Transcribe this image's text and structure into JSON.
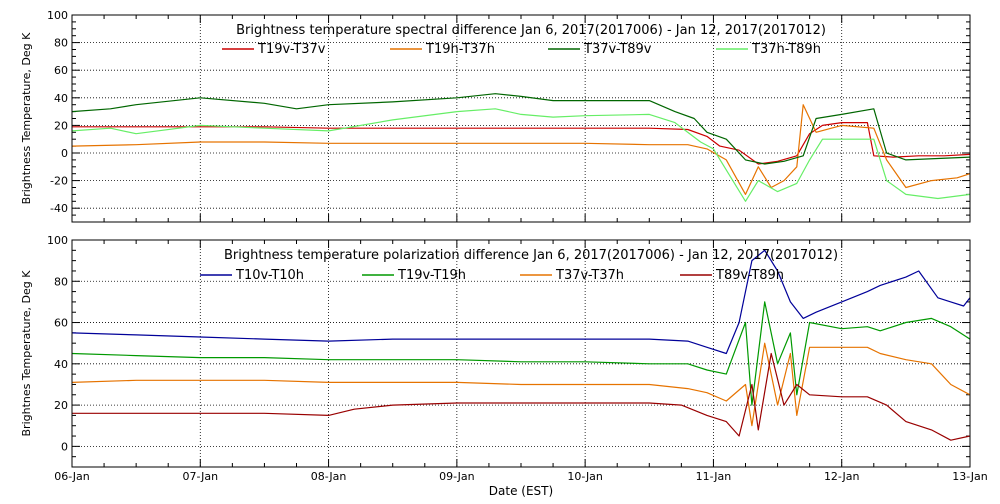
{
  "chart_data": [
    {
      "type": "line",
      "title": "Brightness temperature spectral difference    Jan  6, 2017(2017006) - Jan 12, 2017(2017012)",
      "ylabel": "Brightness Temperature, Deg K",
      "xlabel": "",
      "x_days": [
        0,
        7
      ],
      "ylim": [
        -50,
        100
      ],
      "yticks": [
        -40,
        -20,
        0,
        20,
        40,
        60,
        80,
        100
      ],
      "xticks": [
        0,
        1,
        2,
        3,
        4,
        5,
        6,
        7
      ],
      "xtick_labels": [
        "",
        "",
        "",
        "",
        "",
        "",
        "",
        ""
      ],
      "grid": true,
      "legend": "top-center",
      "series": [
        {
          "name": "T19v-T37v",
          "color": "#cc0000",
          "points": [
            [
              0,
              19
            ],
            [
              0.5,
              19
            ],
            [
              1,
              19
            ],
            [
              1.5,
              19
            ],
            [
              2,
              18
            ],
            [
              2.5,
              18
            ],
            [
              3,
              18
            ],
            [
              3.5,
              18
            ],
            [
              4,
              18
            ],
            [
              4.5,
              18
            ],
            [
              4.8,
              17
            ],
            [
              4.95,
              12
            ],
            [
              5.05,
              5
            ],
            [
              5.2,
              2
            ],
            [
              5.35,
              -8
            ],
            [
              5.5,
              -6
            ],
            [
              5.65,
              -2
            ],
            [
              5.75,
              14
            ],
            [
              5.85,
              20
            ],
            [
              6,
              22
            ],
            [
              6.2,
              22
            ],
            [
              6.25,
              -2
            ],
            [
              6.4,
              -3
            ],
            [
              6.6,
              -2
            ],
            [
              6.8,
              -2
            ],
            [
              7,
              -1
            ]
          ]
        },
        {
          "name": "T19h-T37h",
          "color": "#e67300",
          "points": [
            [
              0,
              5
            ],
            [
              0.5,
              6
            ],
            [
              1,
              8
            ],
            [
              1.5,
              8
            ],
            [
              2,
              7
            ],
            [
              2.5,
              7
            ],
            [
              3,
              7
            ],
            [
              3.5,
              7
            ],
            [
              4,
              7
            ],
            [
              4.5,
              6
            ],
            [
              4.8,
              6
            ],
            [
              4.95,
              3
            ],
            [
              5.1,
              -5
            ],
            [
              5.25,
              -30
            ],
            [
              5.35,
              -10
            ],
            [
              5.45,
              -25
            ],
            [
              5.55,
              -20
            ],
            [
              5.65,
              -10
            ],
            [
              5.7,
              35
            ],
            [
              5.8,
              15
            ],
            [
              6,
              20
            ],
            [
              6.25,
              18
            ],
            [
              6.35,
              -5
            ],
            [
              6.5,
              -25
            ],
            [
              6.7,
              -20
            ],
            [
              6.9,
              -18
            ],
            [
              7,
              -15
            ]
          ]
        },
        {
          "name": "T37v-T89v",
          "color": "#006600",
          "points": [
            [
              0,
              30
            ],
            [
              0.3,
              32
            ],
            [
              0.5,
              35
            ],
            [
              1,
              40
            ],
            [
              1.5,
              36
            ],
            [
              1.75,
              32
            ],
            [
              2,
              35
            ],
            [
              2.5,
              37
            ],
            [
              3,
              40
            ],
            [
              3.3,
              43
            ],
            [
              3.5,
              41
            ],
            [
              3.75,
              38
            ],
            [
              4,
              38
            ],
            [
              4.5,
              38
            ],
            [
              4.7,
              30
            ],
            [
              4.85,
              25
            ],
            [
              4.95,
              15
            ],
            [
              5.1,
              10
            ],
            [
              5.25,
              -5
            ],
            [
              5.4,
              -8
            ],
            [
              5.55,
              -6
            ],
            [
              5.7,
              -2
            ],
            [
              5.8,
              25
            ],
            [
              6,
              28
            ],
            [
              6.25,
              32
            ],
            [
              6.35,
              0
            ],
            [
              6.5,
              -5
            ],
            [
              6.75,
              -4
            ],
            [
              7,
              -3
            ]
          ]
        },
        {
          "name": "T37h-T89h",
          "color": "#66ee66",
          "points": [
            [
              0,
              16
            ],
            [
              0.3,
              18
            ],
            [
              0.5,
              14
            ],
            [
              1,
              20
            ],
            [
              1.5,
              18
            ],
            [
              2,
              16
            ],
            [
              2.5,
              24
            ],
            [
              3,
              30
            ],
            [
              3.3,
              32
            ],
            [
              3.5,
              28
            ],
            [
              3.75,
              26
            ],
            [
              4,
              27
            ],
            [
              4.5,
              28
            ],
            [
              4.7,
              22
            ],
            [
              4.9,
              8
            ],
            [
              5,
              3
            ],
            [
              5.25,
              -35
            ],
            [
              5.35,
              -20
            ],
            [
              5.5,
              -28
            ],
            [
              5.65,
              -22
            ],
            [
              5.75,
              -5
            ],
            [
              5.85,
              10
            ],
            [
              6,
              10
            ],
            [
              6.25,
              10
            ],
            [
              6.35,
              -20
            ],
            [
              6.5,
              -30
            ],
            [
              6.75,
              -33
            ],
            [
              7,
              -30
            ]
          ]
        }
      ]
    },
    {
      "type": "line",
      "title": "Brightness temperature polarization difference    Jan  6, 2017(2017006) - Jan 12, 2017(2017012)",
      "ylabel": "Brightnes Temperature, Deg K",
      "xlabel": "Date (EST)",
      "x_days": [
        0,
        7
      ],
      "ylim": [
        -10,
        100
      ],
      "yticks": [
        0,
        20,
        40,
        60,
        80,
        100
      ],
      "xticks": [
        0,
        1,
        2,
        3,
        4,
        5,
        6,
        7
      ],
      "xtick_labels": [
        "06-Jan",
        "07-Jan",
        "08-Jan",
        "09-Jan",
        "10-Jan",
        "11-Jan",
        "12-Jan",
        "13-Jan"
      ],
      "grid": true,
      "legend": "top-center",
      "series": [
        {
          "name": "T10v-T10h",
          "color": "#000099",
          "points": [
            [
              0,
              55
            ],
            [
              0.5,
              54
            ],
            [
              1,
              53
            ],
            [
              1.5,
              52
            ],
            [
              2,
              51
            ],
            [
              2.5,
              52
            ],
            [
              3,
              52
            ],
            [
              3.5,
              52
            ],
            [
              4,
              52
            ],
            [
              4.5,
              52
            ],
            [
              4.8,
              51
            ],
            [
              4.95,
              48
            ],
            [
              5.1,
              45
            ],
            [
              5.2,
              60
            ],
            [
              5.3,
              90
            ],
            [
              5.4,
              95
            ],
            [
              5.5,
              85
            ],
            [
              5.6,
              70
            ],
            [
              5.7,
              62
            ],
            [
              5.8,
              65
            ],
            [
              6,
              70
            ],
            [
              6.2,
              75
            ],
            [
              6.3,
              78
            ],
            [
              6.5,
              82
            ],
            [
              6.6,
              85
            ],
            [
              6.75,
              72
            ],
            [
              6.85,
              70
            ],
            [
              6.95,
              68
            ],
            [
              7,
              72
            ]
          ]
        },
        {
          "name": "T19v-T19h",
          "color": "#009900",
          "points": [
            [
              0,
              45
            ],
            [
              0.5,
              44
            ],
            [
              1,
              43
            ],
            [
              1.5,
              43
            ],
            [
              2,
              42
            ],
            [
              2.5,
              42
            ],
            [
              3,
              42
            ],
            [
              3.5,
              41
            ],
            [
              4,
              41
            ],
            [
              4.5,
              40
            ],
            [
              4.8,
              40
            ],
            [
              4.95,
              37
            ],
            [
              5.1,
              35
            ],
            [
              5.25,
              60
            ],
            [
              5.3,
              20
            ],
            [
              5.4,
              70
            ],
            [
              5.5,
              40
            ],
            [
              5.6,
              55
            ],
            [
              5.65,
              25
            ],
            [
              5.75,
              60
            ],
            [
              6,
              57
            ],
            [
              6.2,
              58
            ],
            [
              6.3,
              56
            ],
            [
              6.5,
              60
            ],
            [
              6.7,
              62
            ],
            [
              6.85,
              58
            ],
            [
              7,
              52
            ]
          ]
        },
        {
          "name": "T37v-T37h",
          "color": "#e67300",
          "points": [
            [
              0,
              31
            ],
            [
              0.5,
              32
            ],
            [
              1,
              32
            ],
            [
              1.5,
              32
            ],
            [
              2,
              31
            ],
            [
              2.5,
              31
            ],
            [
              3,
              31
            ],
            [
              3.5,
              30
            ],
            [
              4,
              30
            ],
            [
              4.5,
              30
            ],
            [
              4.8,
              28
            ],
            [
              4.95,
              26
            ],
            [
              5.1,
              22
            ],
            [
              5.25,
              30
            ],
            [
              5.3,
              10
            ],
            [
              5.4,
              50
            ],
            [
              5.5,
              20
            ],
            [
              5.6,
              45
            ],
            [
              5.65,
              15
            ],
            [
              5.75,
              48
            ],
            [
              6,
              48
            ],
            [
              6.2,
              48
            ],
            [
              6.3,
              45
            ],
            [
              6.5,
              42
            ],
            [
              6.7,
              40
            ],
            [
              6.85,
              30
            ],
            [
              7,
              25
            ]
          ]
        },
        {
          "name": "T89v-T89h",
          "color": "#990000",
          "points": [
            [
              0,
              16
            ],
            [
              0.5,
              16
            ],
            [
              1,
              16
            ],
            [
              1.5,
              16
            ],
            [
              2,
              15
            ],
            [
              2.2,
              18
            ],
            [
              2.5,
              20
            ],
            [
              3,
              21
            ],
            [
              3.5,
              21
            ],
            [
              4,
              21
            ],
            [
              4.5,
              21
            ],
            [
              4.75,
              20
            ],
            [
              4.95,
              15
            ],
            [
              5.1,
              12
            ],
            [
              5.2,
              5
            ],
            [
              5.3,
              30
            ],
            [
              5.35,
              8
            ],
            [
              5.45,
              45
            ],
            [
              5.55,
              20
            ],
            [
              5.65,
              30
            ],
            [
              5.75,
              25
            ],
            [
              6,
              24
            ],
            [
              6.2,
              24
            ],
            [
              6.35,
              20
            ],
            [
              6.5,
              12
            ],
            [
              6.7,
              8
            ],
            [
              6.85,
              3
            ],
            [
              7,
              5
            ]
          ]
        }
      ]
    }
  ]
}
